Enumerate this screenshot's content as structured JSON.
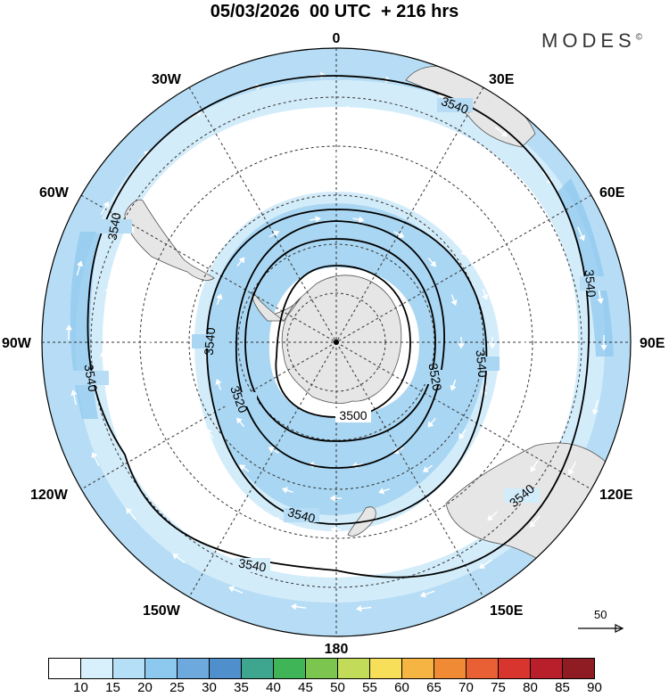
{
  "title": "05/03/2026  00 UTC  + 216 hrs",
  "brand": {
    "name": "MODES",
    "mark": "©"
  },
  "longitude_labels": [
    {
      "lon": 0,
      "text": "0"
    },
    {
      "lon": 30,
      "text": "30E"
    },
    {
      "lon": 60,
      "text": "60E"
    },
    {
      "lon": 90,
      "text": "90E"
    },
    {
      "lon": 120,
      "text": "120E"
    },
    {
      "lon": 150,
      "text": "150E"
    },
    {
      "lon": 180,
      "text": "180"
    },
    {
      "lon": 210,
      "text": "150W"
    },
    {
      "lon": 240,
      "text": "120W"
    },
    {
      "lon": 270,
      "text": "90W"
    },
    {
      "lon": 300,
      "text": "60W"
    },
    {
      "lon": 330,
      "text": "30W"
    }
  ],
  "contours": [
    {
      "value": 3500,
      "label": "3500"
    },
    {
      "value": 3520,
      "label": "3520"
    },
    {
      "value": 3540,
      "label": "3540"
    }
  ],
  "vector_reference": {
    "value": "50",
    "icon": "reference-arrow-icon"
  },
  "colorbar": {
    "labels": [
      "10",
      "15",
      "20",
      "25",
      "30",
      "35",
      "40",
      "45",
      "50",
      "55",
      "60",
      "65",
      "70",
      "75",
      "80",
      "85",
      "90"
    ],
    "colors": [
      "#ffffff",
      "#d7f0fc",
      "#b4dff6",
      "#8dc8ee",
      "#6ea9dd",
      "#4f8fcb",
      "#3ea58f",
      "#3fb557",
      "#7cc650",
      "#c2dc5a",
      "#f7df5a",
      "#f6b542",
      "#f08a34",
      "#e86033",
      "#d8352e",
      "#b81f2b",
      "#8e1c22"
    ]
  },
  "colors": {
    "continent": "#e6e6e6",
    "shade_light": "#d3ecfa",
    "shade_mid": "#a9d6f2",
    "shade_dark": "#88c2ea"
  }
}
